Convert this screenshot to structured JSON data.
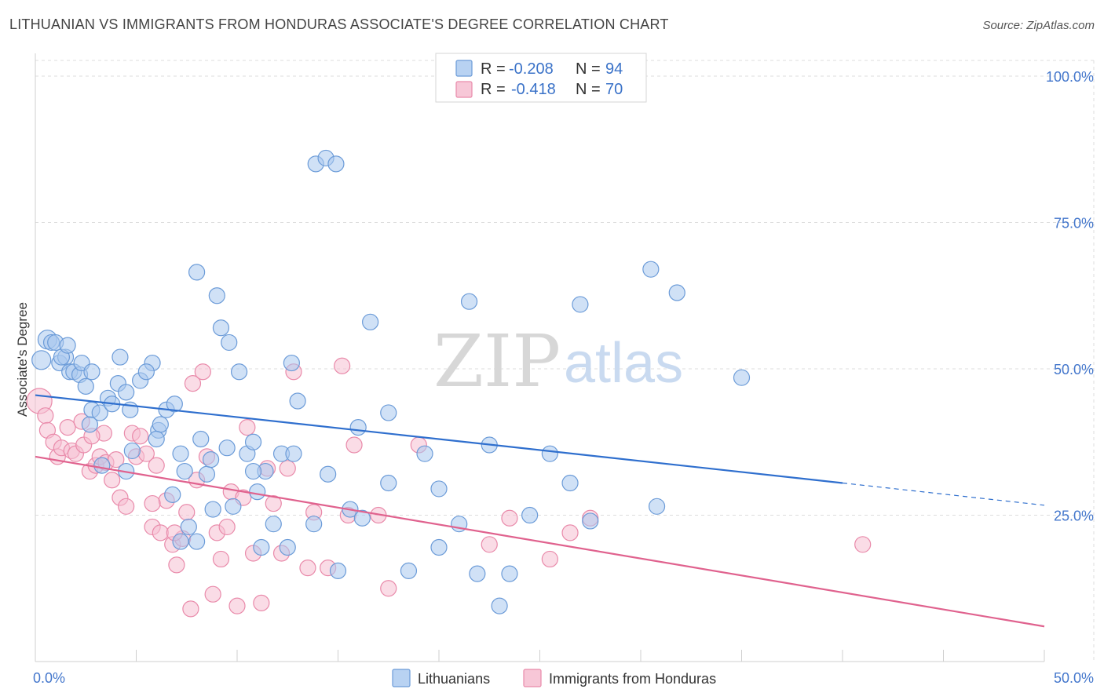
{
  "header": {
    "title": "LITHUANIAN VS IMMIGRANTS FROM HONDURAS ASSOCIATE'S DEGREE CORRELATION CHART",
    "source": "Source: ZipAtlas.com"
  },
  "watermark": {
    "zip": "ZIP",
    "atlas": "atlas"
  },
  "colors": {
    "blue_fill": "#a9c8ee",
    "blue_stroke": "#6b9bd8",
    "blue_line": "#2f6fce",
    "pink_fill": "#f6c0d2",
    "pink_stroke": "#e98aaa",
    "pink_line": "#e0628e",
    "grid": "#dddddd",
    "tick_text": "#4477cc"
  },
  "legend": {
    "rows": [
      {
        "r_label": "R =",
        "r_value": "-0.208",
        "n_label": "N =",
        "n_value": "94"
      },
      {
        "r_label": "R =",
        "r_value": "-0.418",
        "n_label": "N =",
        "n_value": "70"
      }
    ]
  },
  "chart_data": {
    "type": "scatter",
    "title": "LITHUANIAN VS IMMIGRANTS FROM HONDURAS ASSOCIATE'S DEGREE CORRELATION CHART",
    "xlabel": "",
    "ylabel": "Associate's Degree",
    "xlim": [
      0,
      50
    ],
    "ylim": [
      0,
      105
    ],
    "x_tick_labels": [
      "0.0%",
      "50.0%"
    ],
    "y_ticks": [
      25,
      50,
      75,
      100
    ],
    "y_tick_labels": [
      "25.0%",
      "50.0%",
      "75.0%",
      "100.0%"
    ],
    "grid": true,
    "series": [
      {
        "name": "Lithuanians",
        "r": -0.208,
        "n": 94,
        "trend": {
          "x0": 0,
          "y0": 45.5,
          "x1": 40,
          "y1": 30.5,
          "dash_to_x": 50,
          "dash_to_y": 26.7
        },
        "points": [
          [
            0.3,
            51.5
          ],
          [
            0.6,
            55
          ],
          [
            0.8,
            54.5
          ],
          [
            1.0,
            54.5
          ],
          [
            1.2,
            51
          ],
          [
            1.5,
            52
          ],
          [
            1.7,
            49.5
          ],
          [
            1.9,
            49.5
          ],
          [
            2.2,
            49
          ],
          [
            2.3,
            51
          ],
          [
            2.5,
            47
          ],
          [
            2.8,
            49.5
          ],
          [
            2.7,
            40.5
          ],
          [
            2.8,
            43
          ],
          [
            3.2,
            42.5
          ],
          [
            3.6,
            45
          ],
          [
            3.8,
            44
          ],
          [
            4.1,
            47.5
          ],
          [
            4.2,
            52
          ],
          [
            4.5,
            46
          ],
          [
            4.7,
            43
          ],
          [
            5.2,
            48
          ],
          [
            5.8,
            51
          ],
          [
            5.5,
            49.5
          ],
          [
            6.1,
            39.5
          ],
          [
            6.5,
            43
          ],
          [
            6.2,
            40.5
          ],
          [
            6.9,
            44
          ],
          [
            7.2,
            35.5
          ],
          [
            7.4,
            32.5
          ],
          [
            8.2,
            38
          ],
          [
            8.5,
            32
          ],
          [
            8.7,
            34.5
          ],
          [
            8.0,
            66.5
          ],
          [
            9.0,
            62.5
          ],
          [
            9.2,
            57
          ],
          [
            9.6,
            54.5
          ],
          [
            10.1,
            49.5
          ],
          [
            9.5,
            36.5
          ],
          [
            10.5,
            35.5
          ],
          [
            10.8,
            37.5
          ],
          [
            11.0,
            29
          ],
          [
            11.4,
            32.5
          ],
          [
            11.8,
            23.5
          ],
          [
            12.2,
            35.5
          ],
          [
            12.7,
            51
          ],
          [
            12.8,
            35.5
          ],
          [
            13.0,
            44.5
          ],
          [
            13.9,
            85
          ],
          [
            14.4,
            86
          ],
          [
            14.9,
            85
          ],
          [
            15.0,
            15.5
          ],
          [
            15.6,
            26
          ],
          [
            16.0,
            40
          ],
          [
            16.2,
            24.5
          ],
          [
            16.6,
            58
          ],
          [
            17.5,
            42.5
          ],
          [
            17.5,
            30.5
          ],
          [
            18.5,
            15.5
          ],
          [
            19.3,
            35.5
          ],
          [
            20.0,
            29.5
          ],
          [
            20.0,
            19.5
          ],
          [
            21.0,
            23.5
          ],
          [
            21.5,
            61.5
          ],
          [
            21.9,
            15
          ],
          [
            22.5,
            37
          ],
          [
            23.5,
            15
          ],
          [
            23.0,
            9.5
          ],
          [
            24.5,
            25
          ],
          [
            25.5,
            35.5
          ],
          [
            26.5,
            30.5
          ],
          [
            27.0,
            61
          ],
          [
            27.5,
            24
          ],
          [
            30.5,
            67
          ],
          [
            30.8,
            26.5
          ],
          [
            31.8,
            63
          ],
          [
            35.0,
            48.5
          ],
          [
            1.3,
            52
          ],
          [
            4.5,
            32.5
          ],
          [
            6.0,
            38
          ],
          [
            7.6,
            23
          ],
          [
            8.0,
            20.5
          ],
          [
            8.8,
            26
          ],
          [
            9.8,
            26.5
          ],
          [
            10.8,
            32.5
          ],
          [
            11.2,
            19.5
          ],
          [
            12.5,
            19.5
          ],
          [
            14.5,
            32
          ],
          [
            3.3,
            33.5
          ],
          [
            4.8,
            36
          ],
          [
            6.8,
            28.5
          ],
          [
            7.2,
            20.5
          ],
          [
            13.8,
            23.5
          ],
          [
            1.6,
            54
          ]
        ]
      },
      {
        "name": "Immigrants from Honduras",
        "r": -0.418,
        "n": 70,
        "trend": {
          "x0": 0,
          "y0": 35,
          "x1": 50,
          "y1": 6
        },
        "points": [
          [
            0.2,
            44.5
          ],
          [
            0.5,
            42
          ],
          [
            0.6,
            39.5
          ],
          [
            0.9,
            37.5
          ],
          [
            1.1,
            35
          ],
          [
            1.3,
            36.5
          ],
          [
            1.6,
            40
          ],
          [
            1.8,
            36
          ],
          [
            2.0,
            35.5
          ],
          [
            2.3,
            41
          ],
          [
            2.4,
            37
          ],
          [
            2.7,
            32.5
          ],
          [
            3.0,
            33.5
          ],
          [
            3.2,
            35
          ],
          [
            3.4,
            39
          ],
          [
            3.5,
            34
          ],
          [
            3.8,
            31
          ],
          [
            4.0,
            34.5
          ],
          [
            4.2,
            28
          ],
          [
            4.5,
            26.5
          ],
          [
            4.8,
            39
          ],
          [
            5.0,
            35
          ],
          [
            5.2,
            38.5
          ],
          [
            5.5,
            35.5
          ],
          [
            5.8,
            23
          ],
          [
            6.0,
            33.5
          ],
          [
            6.2,
            22
          ],
          [
            6.5,
            27.5
          ],
          [
            6.8,
            20
          ],
          [
            7.0,
            16.5
          ],
          [
            7.3,
            21
          ],
          [
            7.5,
            25.5
          ],
          [
            7.7,
            9
          ],
          [
            7.8,
            47.5
          ],
          [
            8.0,
            31
          ],
          [
            8.3,
            49.5
          ],
          [
            8.5,
            35
          ],
          [
            8.8,
            11.5
          ],
          [
            9.0,
            22
          ],
          [
            9.2,
            17.5
          ],
          [
            9.5,
            23
          ],
          [
            9.7,
            29
          ],
          [
            10.0,
            9.5
          ],
          [
            10.3,
            28
          ],
          [
            10.5,
            40
          ],
          [
            10.8,
            18.5
          ],
          [
            11.2,
            10
          ],
          [
            11.5,
            33
          ],
          [
            11.8,
            27
          ],
          [
            12.2,
            18.5
          ],
          [
            12.5,
            33
          ],
          [
            12.8,
            49.5
          ],
          [
            13.5,
            16
          ],
          [
            13.8,
            25.5
          ],
          [
            14.5,
            16
          ],
          [
            15.2,
            50.5
          ],
          [
            15.8,
            37
          ],
          [
            15.5,
            25
          ],
          [
            17.0,
            25
          ],
          [
            17.5,
            12.5
          ],
          [
            19.0,
            37
          ],
          [
            22.5,
            20
          ],
          [
            23.5,
            24.5
          ],
          [
            25.5,
            17.5
          ],
          [
            26.5,
            22
          ],
          [
            27.5,
            24.5
          ],
          [
            41.0,
            20
          ],
          [
            6.9,
            22
          ],
          [
            2.8,
            38.5
          ],
          [
            5.8,
            27
          ]
        ]
      }
    ]
  },
  "bottom_legend": {
    "items": [
      "Lithuanians",
      "Immigrants from Honduras"
    ]
  }
}
